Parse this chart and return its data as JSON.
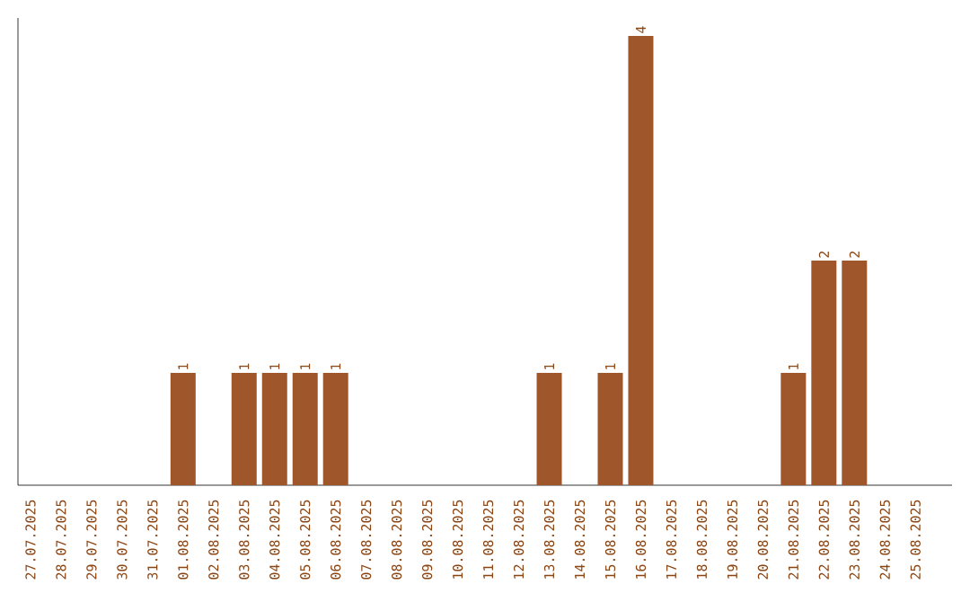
{
  "chart_data": {
    "type": "bar",
    "categories": [
      "27.07.2025",
      "28.07.2025",
      "29.07.2025",
      "30.07.2025",
      "31.07.2025",
      "01.08.2025",
      "02.08.2025",
      "03.08.2025",
      "04.08.2025",
      "05.08.2025",
      "06.08.2025",
      "07.08.2025",
      "08.08.2025",
      "09.08.2025",
      "10.08.2025",
      "11.08.2025",
      "12.08.2025",
      "13.08.2025",
      "14.08.2025",
      "15.08.2025",
      "16.08.2025",
      "17.08.2025",
      "18.08.2025",
      "19.08.2025",
      "20.08.2025",
      "21.08.2025",
      "22.08.2025",
      "23.08.2025",
      "24.08.2025",
      "25.08.2025"
    ],
    "values": [
      0,
      0,
      0,
      0,
      0,
      1,
      0,
      1,
      1,
      1,
      1,
      0,
      0,
      0,
      0,
      0,
      0,
      1,
      0,
      1,
      4,
      0,
      0,
      0,
      0,
      1,
      2,
      2,
      0,
      0
    ],
    "value_labels": [
      null,
      null,
      null,
      null,
      null,
      "1",
      null,
      "1",
      "1",
      "1",
      "1",
      null,
      null,
      null,
      null,
      null,
      null,
      "1",
      null,
      "1",
      "4",
      null,
      null,
      null,
      null,
      "1",
      "2",
      "2",
      null,
      null
    ],
    "color": "#a0562b",
    "ylim": [
      0,
      4.16
    ],
    "tick_labels": "x"
  }
}
